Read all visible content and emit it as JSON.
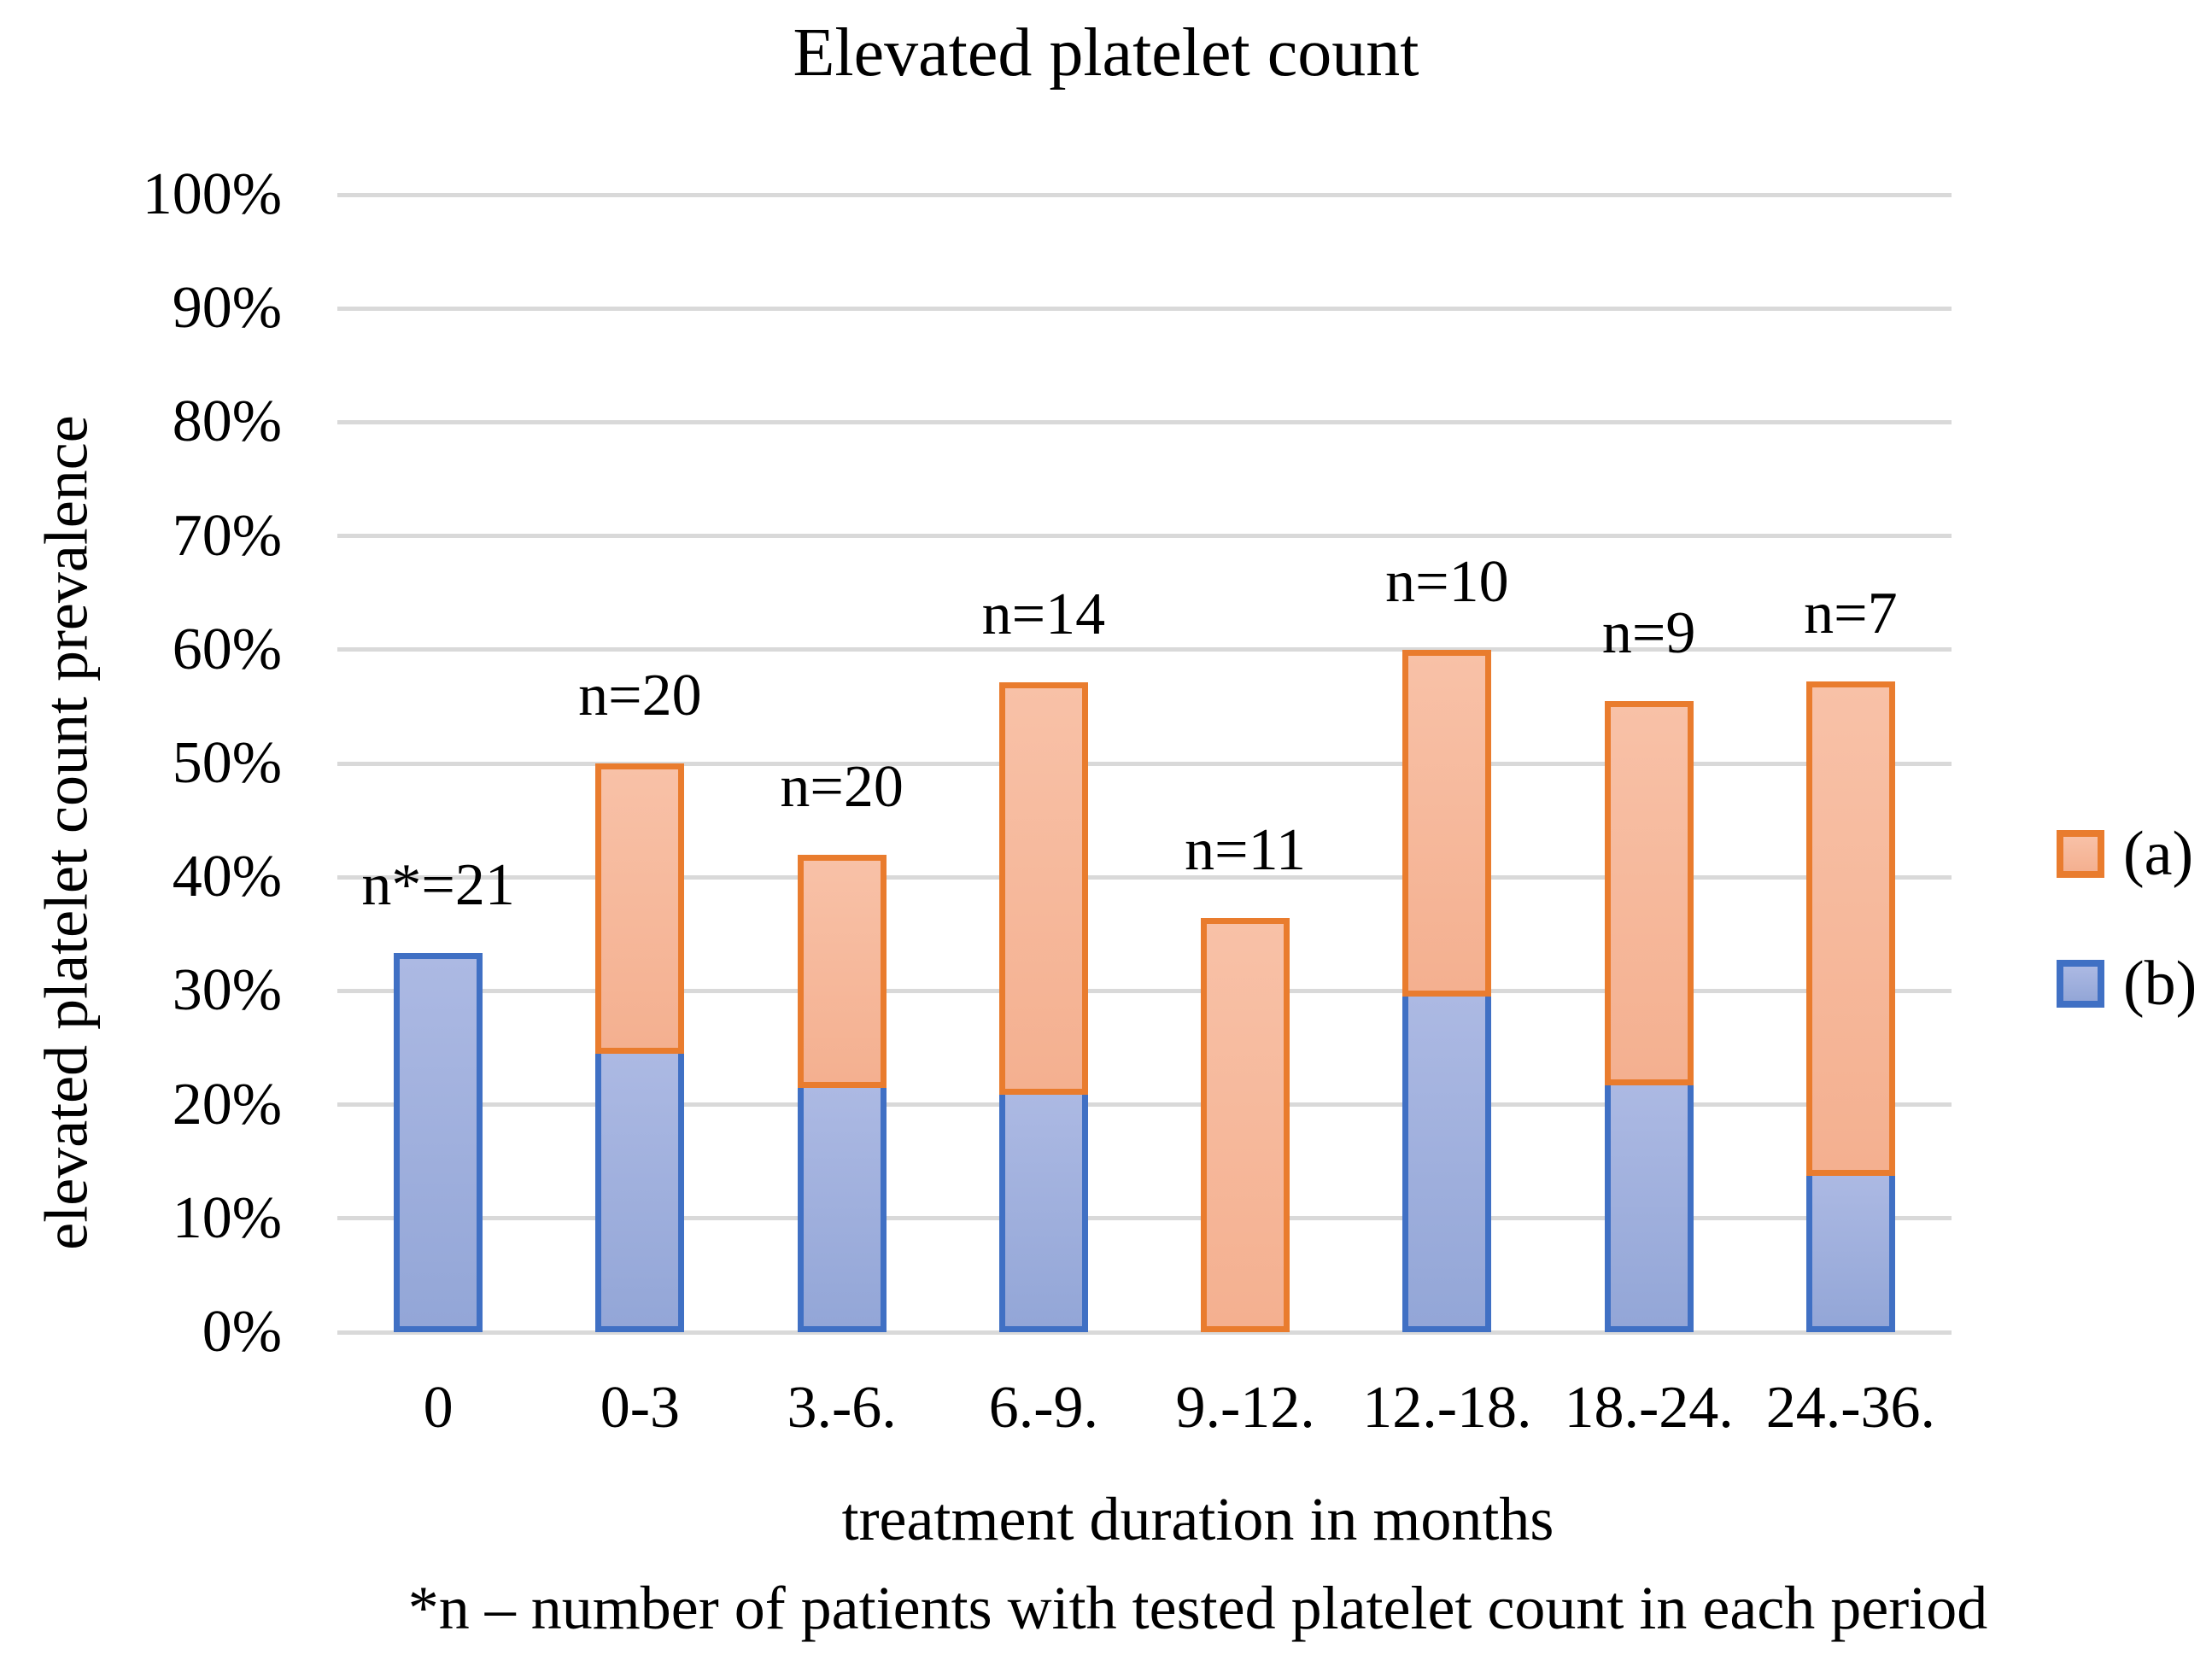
{
  "title": "Elevated platelet count",
  "y_axis": {
    "title": "elevated platelet count prevalence",
    "min": 0,
    "max": 100,
    "step": 10,
    "tick_labels": [
      "0%",
      "10%",
      "20%",
      "30%",
      "40%",
      "50%",
      "60%",
      "70%",
      "80%",
      "90%",
      "100%"
    ]
  },
  "x_axis": {
    "title": "treatment duration in months"
  },
  "footnote": "*n – number of patients with tested platelet count in each period",
  "legend": {
    "entries": [
      {
        "label": "(a)",
        "color_key": "orange"
      },
      {
        "label": "(b)",
        "color_key": "blue"
      }
    ]
  },
  "colors": {
    "orange_border": "#E97C2E",
    "orange_fill_top": "#F8C1A7",
    "orange_fill_bottom": "#F4B090",
    "blue_border": "#4070C4",
    "blue_fill_top": "#ACB9E3",
    "blue_fill_bottom": "#93A6D7",
    "gridline": "#D9D9D9",
    "text": "#000000",
    "background": "#FFFFFF"
  },
  "chart_data": {
    "type": "bar",
    "stacked": true,
    "title": "Elevated platelet count",
    "xlabel": "treatment duration in months",
    "ylabel": "elevated platelet count prevalence",
    "ylim": [
      0,
      100
    ],
    "grid": "horizontal",
    "legend_position": "right",
    "categories": [
      "0",
      "0-3",
      "3.-6.",
      "6.-9.",
      "9.-12.",
      "12.-18.",
      "18.-24.",
      "24.-36."
    ],
    "series": [
      {
        "name": "(b)",
        "color_key": "blue",
        "values": [
          33.3,
          25.0,
          22.0,
          21.4,
          0.0,
          30.0,
          22.2,
          14.3
        ]
      },
      {
        "name": "(a)",
        "color_key": "orange",
        "values": [
          0.0,
          25.0,
          20.0,
          35.7,
          36.4,
          30.0,
          33.3,
          42.9
        ]
      }
    ],
    "stack_totals": [
      33.3,
      50.0,
      42.0,
      57.1,
      36.4,
      60.0,
      55.5,
      57.2
    ],
    "bar_labels": [
      "n*=21",
      "n=20",
      "n=20",
      "n=14",
      "n=11",
      "n=10",
      "n=9",
      "n=7"
    ]
  }
}
